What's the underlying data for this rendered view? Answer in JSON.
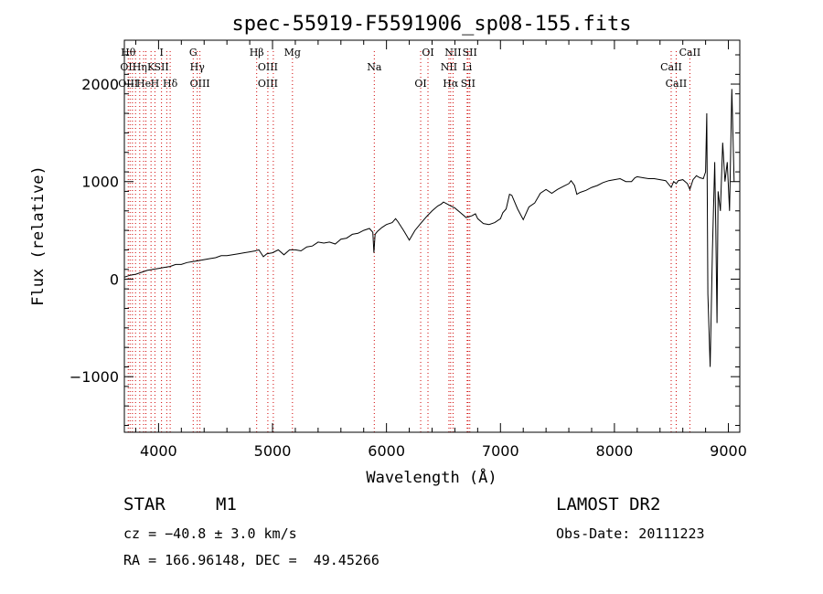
{
  "chart_data": {
    "type": "line",
    "title": "spec-55919-F5591906_sp08-155.fits",
    "xlabel": "Wavelength (Å)",
    "ylabel": "Flux (relative)",
    "xlim": [
      3700,
      9100
    ],
    "ylim": [
      -1570,
      2450
    ],
    "x_ticks": [
      4000,
      5000,
      6000,
      7000,
      8000,
      9000
    ],
    "y_ticks": [
      -1000,
      0,
      1000,
      2000
    ],
    "y_tick_labels": [
      "−1000",
      "0",
      "1000",
      "2000"
    ],
    "series": [
      {
        "x": [
          3700,
          3750,
          3800,
          3850,
          3900,
          3950,
          4000,
          4050,
          4100,
          4150,
          4200,
          4250,
          4300,
          4350,
          4400,
          4450,
          4500,
          4550,
          4600,
          4650,
          4700,
          4750,
          4800,
          4850,
          4880,
          4920,
          4950,
          5000,
          5050,
          5100,
          5150,
          5200,
          5250,
          5300,
          5350,
          5400,
          5450,
          5500,
          5550,
          5600,
          5650,
          5700,
          5750,
          5800,
          5850,
          5880,
          5890,
          5900,
          5920,
          5960,
          6000,
          6050,
          6080,
          6100,
          6150,
          6180,
          6200,
          6250,
          6300,
          6350,
          6400,
          6450,
          6480,
          6500,
          6550,
          6600,
          6650,
          6700,
          6750,
          6780,
          6800,
          6850,
          6900,
          6950,
          7000,
          7020,
          7050,
          7080,
          7100,
          7150,
          7200,
          7250,
          7300,
          7350,
          7400,
          7450,
          7500,
          7550,
          7600,
          7620,
          7650,
          7670,
          7700,
          7750,
          7800,
          7850,
          7900,
          7950,
          8000,
          8050,
          8100,
          8150,
          8180,
          8200,
          8250,
          8300,
          8350,
          8400,
          8450,
          8498,
          8520,
          8542,
          8560,
          8600,
          8640,
          8662,
          8690,
          8720,
          8750,
          8780,
          8800,
          8810,
          8820,
          8840,
          8860,
          8880,
          8890,
          8900,
          8910,
          8930,
          8950,
          8970,
          8990,
          9010,
          9030,
          9050
        ],
        "y": [
          20,
          40,
          50,
          70,
          90,
          100,
          110,
          120,
          130,
          150,
          150,
          170,
          180,
          190,
          200,
          210,
          220,
          240,
          240,
          250,
          260,
          270,
          280,
          290,
          300,
          230,
          260,
          270,
          300,
          250,
          300,
          300,
          290,
          330,
          340,
          380,
          370,
          380,
          360,
          410,
          420,
          460,
          470,
          500,
          520,
          480,
          270,
          460,
          490,
          530,
          560,
          580,
          620,
          590,
          500,
          440,
          400,
          500,
          570,
          640,
          700,
          750,
          770,
          790,
          760,
          730,
          680,
          630,
          650,
          670,
          620,
          570,
          560,
          580,
          620,
          680,
          720,
          870,
          860,
          720,
          610,
          740,
          780,
          880,
          920,
          880,
          920,
          950,
          980,
          1010,
          960,
          870,
          890,
          910,
          940,
          960,
          990,
          1010,
          1020,
          1030,
          1000,
          1000,
          1040,
          1050,
          1040,
          1030,
          1030,
          1020,
          1010,
          940,
          1000,
          980,
          1010,
          1020,
          980,
          920,
          1020,
          1060,
          1040,
          1030,
          1100,
          1700,
          -150,
          -900,
          300,
          1200,
          500,
          -450,
          900,
          700,
          1400,
          1000,
          1200,
          700,
          1950,
          1000
        ]
      }
    ],
    "lines": [
      {
        "x": 3734,
        "labels": [
          "Hθ",
          "OII",
          "OIII"
        ]
      },
      {
        "x": 3750,
        "labels": []
      },
      {
        "x": 3771,
        "labels": []
      },
      {
        "x": 3798,
        "labels": []
      },
      {
        "x": 3835,
        "labels": [
          "Hη"
        ]
      },
      {
        "x": 3869,
        "labels": [
          "He"
        ]
      },
      {
        "x": 3889,
        "labels": []
      },
      {
        "x": 3934,
        "labels": [
          "K"
        ]
      },
      {
        "x": 3968,
        "labels": [
          "H"
        ]
      },
      {
        "x": 4026,
        "labels": [
          "I",
          "SII"
        ]
      },
      {
        "x": 4072,
        "labels": []
      },
      {
        "x": 4102,
        "labels": [
          "Hδ"
        ]
      },
      {
        "x": 4304,
        "labels": [
          "G"
        ]
      },
      {
        "x": 4340,
        "labels": [
          "Hγ"
        ]
      },
      {
        "x": 4363,
        "labels": [
          "OIII"
        ]
      },
      {
        "x": 4861,
        "labels": [
          "Hβ"
        ]
      },
      {
        "x": 4959,
        "labels": [
          "OIII",
          "OIII"
        ]
      },
      {
        "x": 5007,
        "labels": []
      },
      {
        "x": 5175,
        "labels": [
          "Mg"
        ]
      },
      {
        "x": 5893,
        "labels": [
          "Na"
        ]
      },
      {
        "x": 6300,
        "labels": [
          "OI"
        ]
      },
      {
        "x": 6364,
        "labels": [
          "OI"
        ]
      },
      {
        "x": 6548,
        "labels": [
          "NII"
        ]
      },
      {
        "x": 6563,
        "labels": [
          "Hα"
        ]
      },
      {
        "x": 6584,
        "labels": [
          "NII"
        ]
      },
      {
        "x": 6708,
        "labels": [
          "Li"
        ]
      },
      {
        "x": 6716,
        "labels": [
          "SII"
        ]
      },
      {
        "x": 6731,
        "labels": [
          "SII"
        ]
      },
      {
        "x": 8498,
        "labels": [
          "CaII"
        ]
      },
      {
        "x": 8542,
        "labels": [
          "CaII"
        ]
      },
      {
        "x": 8662,
        "labels": [
          "CaII"
        ]
      }
    ]
  },
  "info": {
    "class": "STAR",
    "subclass": "M1",
    "survey": "LAMOST DR2",
    "cz": "cz = −40.8 ± 3.0 km/s",
    "obs_date": "Obs-Date: 20111223",
    "coords": "RA = 166.96148, DEC =  49.45266"
  },
  "colors": {
    "spectrum": "#000000",
    "line_markers": "#d00000",
    "axes": "#000000"
  }
}
